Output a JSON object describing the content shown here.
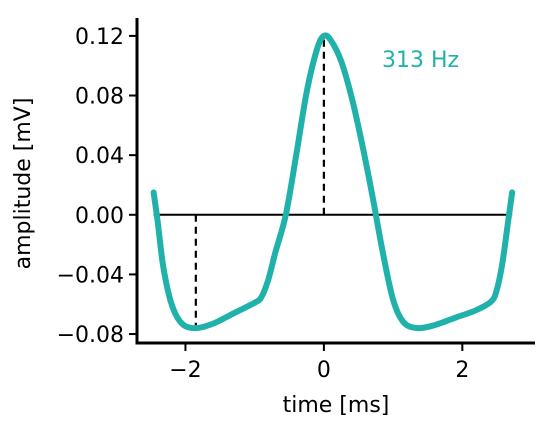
{
  "chart_data": {
    "type": "line",
    "title": "",
    "xlabel": "time [ms]",
    "ylabel": "amplitude [mV]",
    "xlim": [
      -2.7,
      3.05
    ],
    "ylim": [
      -0.086,
      0.132
    ],
    "xticks": [
      -2,
      0,
      2
    ],
    "xtick_labels": [
      "−2",
      "0",
      "2"
    ],
    "yticks": [
      0.12,
      0.08,
      0.04,
      0.0,
      -0.04,
      -0.08
    ],
    "ytick_labels": [
      "0.12",
      "0.08",
      "0.04",
      "0.00",
      "−0.04",
      "−0.08"
    ],
    "annotation": "313 Hz",
    "series": [
      {
        "color": "#20b2aa",
        "x": [
          -2.46,
          -2.4,
          -2.32,
          -2.2,
          -2.05,
          -1.85,
          -1.6,
          -1.3,
          -1.0,
          -0.9,
          -0.8,
          -0.7,
          -0.55,
          -0.4,
          -0.25,
          -0.1,
          0.0,
          0.1,
          0.25,
          0.4,
          0.55,
          0.7,
          0.85,
          1.0,
          1.15,
          1.35,
          1.6,
          1.9,
          2.2,
          2.42,
          2.5,
          2.58,
          2.66,
          2.72
        ],
        "y": [
          0.015,
          -0.005,
          -0.035,
          -0.06,
          -0.073,
          -0.076,
          -0.073,
          -0.066,
          -0.059,
          -0.055,
          -0.043,
          -0.025,
          0.0,
          0.04,
          0.082,
          0.111,
          0.12,
          0.117,
          0.103,
          0.079,
          0.048,
          0.013,
          -0.025,
          -0.057,
          -0.072,
          -0.076,
          -0.074,
          -0.069,
          -0.064,
          -0.058,
          -0.05,
          -0.032,
          -0.005,
          0.015
        ]
      }
    ],
    "baseline": {
      "y": 0.0,
      "x_start": -2.46,
      "x_end": 2.72
    },
    "vertical_markers": [
      {
        "x": -1.85,
        "y_from": 0.0,
        "y_to": -0.076
      },
      {
        "x": 0.0,
        "y_from": 0.0,
        "y_to": 0.12
      }
    ]
  }
}
